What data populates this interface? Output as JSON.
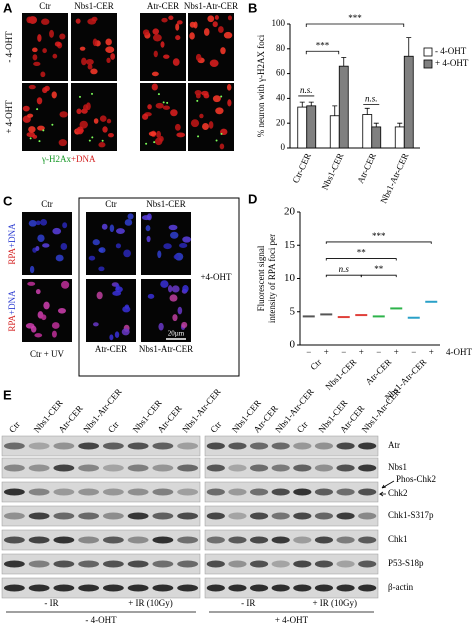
{
  "panel_a": {
    "label": "A",
    "columns": [
      "Ctr",
      "Nbs1-CER",
      "Atr-CER",
      "Nbs1-Atr-CER"
    ],
    "rows": [
      "- 4-OHT",
      "+ 4-OHT"
    ],
    "stain": [
      "γ-H2Ax",
      "+DNA"
    ]
  },
  "chart_data": [
    {
      "type": "bar",
      "label": "B",
      "y_label": "% neuron with γ-H2AX foci",
      "categories": [
        "Ctr-CER",
        "Nbs1-CER",
        "Atr-CER",
        "Nbs1-Atr-CER"
      ],
      "series": [
        {
          "name": "- 4-OHT",
          "color": "#ffffff",
          "values": [
            33,
            26,
            27,
            17
          ],
          "errors": [
            4,
            8,
            5,
            3
          ]
        },
        {
          "name": "+ 4-OHT",
          "color": "#808080",
          "values": [
            34,
            66,
            17,
            74
          ],
          "errors": [
            3,
            7,
            3,
            15
          ]
        }
      ],
      "ylim": [
        0,
        100
      ],
      "yticks": [
        0,
        20,
        40,
        60,
        80,
        100
      ],
      "legend": "upper right",
      "annotations": [
        "***",
        "***",
        "n.s.",
        "n.s."
      ]
    },
    {
      "type": "strip",
      "label": "D",
      "y_label": [
        "Fluorescent signal",
        "intensity of RPA foci per"
      ],
      "categories": [
        "Ctr",
        "Nbs1-CER",
        "Atr-CER",
        "Nbs1-Atr-CER"
      ],
      "treatments": [
        "−",
        "+"
      ],
      "treatment_label": "4-OHT",
      "groups": [
        {
          "color": "#555555",
          "values": [
            4.3,
            4.6
          ]
        },
        {
          "color": "#e0403a",
          "values": [
            4.2,
            4.5
          ]
        },
        {
          "color": "#2db34a",
          "values": [
            4.3,
            5.5
          ]
        },
        {
          "color": "#2aa0c8",
          "values": [
            4.1,
            6.5
          ]
        }
      ],
      "ylim": [
        0,
        20
      ],
      "yticks": [
        0,
        5,
        10,
        15,
        20
      ],
      "annotations": [
        "***",
        "**",
        "n.s",
        "**"
      ]
    }
  ],
  "panel_c": {
    "label": "C",
    "columns": [
      "Ctr",
      "Ctr",
      "Nbs1-CER"
    ],
    "row_labels": [
      [
        "RPA",
        "+DNA"
      ],
      [
        "RPA",
        "+DNA"
      ]
    ],
    "bottom": [
      "Ctr + UV",
      "Atr-CER",
      "Nbs1-Atr-CER"
    ],
    "treatment": "+4-OHT",
    "scale": "20µm"
  },
  "panel_e": {
    "label": "E",
    "lanes": [
      [
        "Ctr",
        "Nbs1-CER",
        "Atr-CER",
        "Nbs1-Atr-CER",
        "Ctr",
        "Nbs1-CER",
        "Atr-CER",
        "Nbs1-Atr-CER"
      ],
      [
        "Ctr",
        "Nbs1-CER",
        "Atr-CER",
        "Nbs1-Atr-CER",
        "Ctr",
        "Nbs1-CER",
        "Atr-CER",
        "Nbs1-Atr-CER"
      ]
    ],
    "proteins": [
      "Atr",
      "Nbs1",
      "Phos-Chk2",
      "Chk2",
      "Chk1-S317p",
      "Chk1",
      "P53-S18p",
      "β-actin"
    ],
    "ir": [
      [
        "- IR",
        "+ IR (10Gy)"
      ],
      [
        "- IR",
        "+ IR (10Gy)"
      ]
    ],
    "ohT": [
      "- 4-OHT",
      "+ 4-OHT"
    ]
  }
}
